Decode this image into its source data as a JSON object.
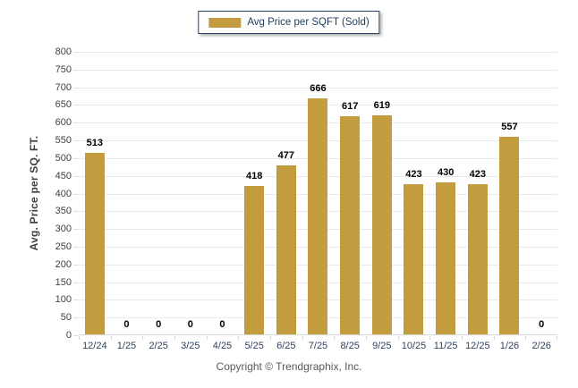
{
  "legend": {
    "swatch_icon": "gold-square-swatch"
  },
  "footer": {
    "copyright": "Copyright © Trendgraphix, Inc."
  },
  "colors": {
    "bar": "#C49C40",
    "grid": "#E9E9E9",
    "axis_line": "#D6D6D6",
    "x_label_text": "#2F4460",
    "y_label_text": "#3F3F3F",
    "value_label_text": "#000000",
    "legend_border": "#24406B",
    "legend_text": "#1F3A5F",
    "footer_text": "#595959"
  },
  "chart_data": {
    "type": "bar",
    "categories": [
      "12/24",
      "1/25",
      "2/25",
      "3/25",
      "4/25",
      "5/25",
      "6/25",
      "7/25",
      "8/25",
      "9/25",
      "10/25",
      "11/25",
      "12/25",
      "1/26",
      "2/26"
    ],
    "series": [
      {
        "name": "Avg Price per SQFT (Sold)",
        "values": [
          513,
          0,
          0,
          0,
          0,
          418,
          477,
          666,
          617,
          619,
          423,
          430,
          423,
          557,
          0
        ],
        "color": "#C49C40"
      }
    ],
    "title": "",
    "xlabel": "",
    "ylabel": "Avg. Price per SQ. FT.",
    "ylim": [
      0,
      800
    ],
    "ytick_step": 50,
    "grid": true,
    "legend_position": "top-center",
    "value_labels": true
  }
}
